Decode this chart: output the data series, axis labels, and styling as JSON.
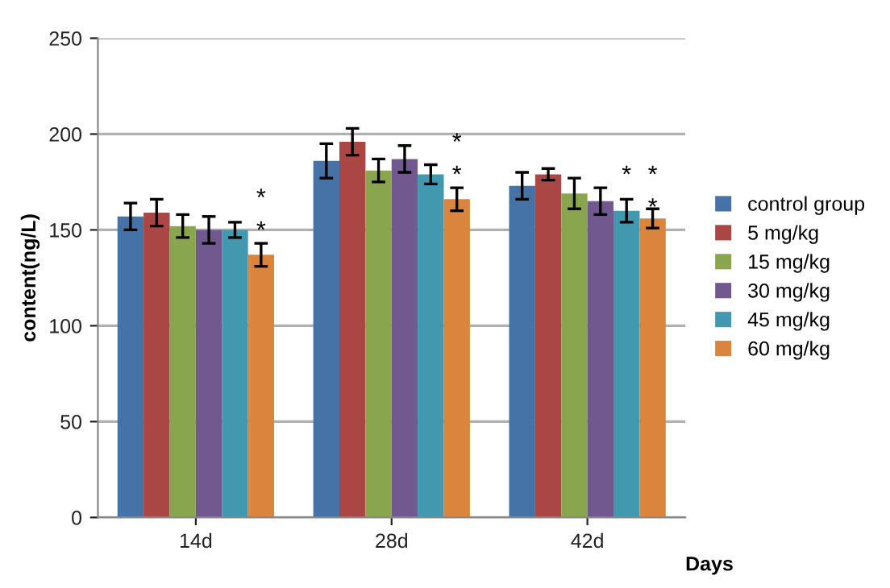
{
  "chart_data": {
    "type": "bar",
    "categories": [
      "14d",
      "28d",
      "42d"
    ],
    "xlabel": "Days",
    "ylabel": "content(ng/L)",
    "ylim": [
      0,
      250
    ],
    "yticks": [
      0,
      50,
      100,
      150,
      200,
      250
    ],
    "grid": "y",
    "legend": "right",
    "series": [
      {
        "name": "control group",
        "color": "#4572a7",
        "values": [
          157,
          186,
          173
        ],
        "errors": [
          7,
          9,
          7
        ]
      },
      {
        "name": "5 mg/kg",
        "color": "#aa4643",
        "values": [
          159,
          196,
          179
        ],
        "errors": [
          7,
          7,
          3
        ]
      },
      {
        "name": "15 mg/kg",
        "color": "#89a54e",
        "values": [
          152,
          181,
          169
        ],
        "errors": [
          6,
          6,
          8
        ]
      },
      {
        "name": "30 mg/kg",
        "color": "#71588f",
        "values": [
          150,
          187,
          165
        ],
        "errors": [
          7,
          7,
          7
        ]
      },
      {
        "name": "45 mg/kg",
        "color": "#4198af",
        "values": [
          150,
          179,
          160
        ],
        "errors": [
          4,
          5,
          6
        ]
      },
      {
        "name": "60 mg/kg",
        "color": "#db843d",
        "values": [
          137,
          166,
          156
        ],
        "errors": [
          6,
          6,
          5
        ]
      }
    ],
    "annotations": [
      "*",
      "*",
      "*",
      "*",
      "*",
      "*",
      "*"
    ]
  }
}
